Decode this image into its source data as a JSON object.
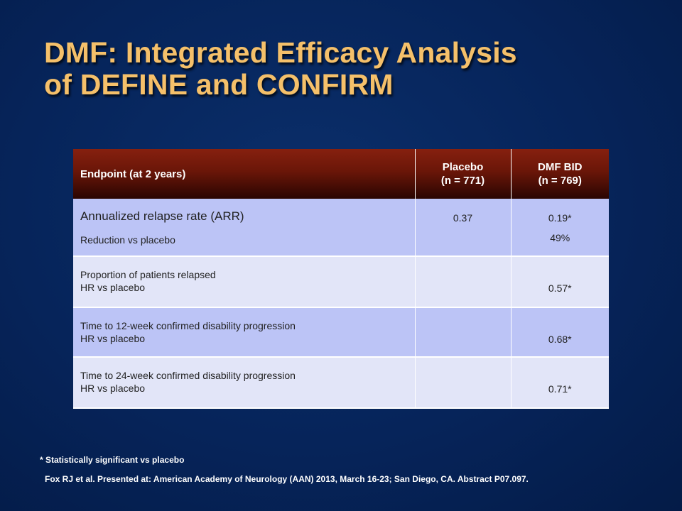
{
  "slide": {
    "title_line1": "DMF: Integrated Efficacy Analysis",
    "title_line2": "of DEFINE and CONFIRM"
  },
  "table": {
    "headers": {
      "endpoint": "Endpoint (at  2 years)",
      "placebo_line1": "Placebo",
      "placebo_line2": "(n = 771)",
      "dmf_line1": "DMF BID",
      "dmf_line2": "(n = 769)"
    },
    "rows": [
      {
        "endpoint_main": "Annualized relapse rate (ARR)",
        "endpoint_sub": "Reduction vs placebo",
        "placebo": "0.37",
        "dmf_main": "0.19*",
        "dmf_sub": "49%"
      },
      {
        "endpoint_main": "Proportion of patients relapsed",
        "endpoint_sub": "HR vs placebo",
        "placebo": "",
        "dmf_main": "0.57*"
      },
      {
        "endpoint_main": "Time to 12-week confirmed disability progression",
        "endpoint_sub": "HR vs placebo",
        "placebo": "",
        "dmf_main": "0.68*"
      },
      {
        "endpoint_main": "Time to 24-week confirmed disability progression",
        "endpoint_sub": "HR vs placebo",
        "placebo": "",
        "dmf_main": "0.71*"
      }
    ]
  },
  "footnote": "* Statistically significant vs placebo",
  "reference": "Fox RJ et al. Presented  at: American Academy of Neurology (AAN) 2013, March 16-23;  San Diego, CA. Abstract P07.097.",
  "colors": {
    "background": "#062255",
    "title": "#f5c06a",
    "header": "#6a1608",
    "row_dark": "#bcc4f6",
    "row_light": "#e2e5f8"
  }
}
